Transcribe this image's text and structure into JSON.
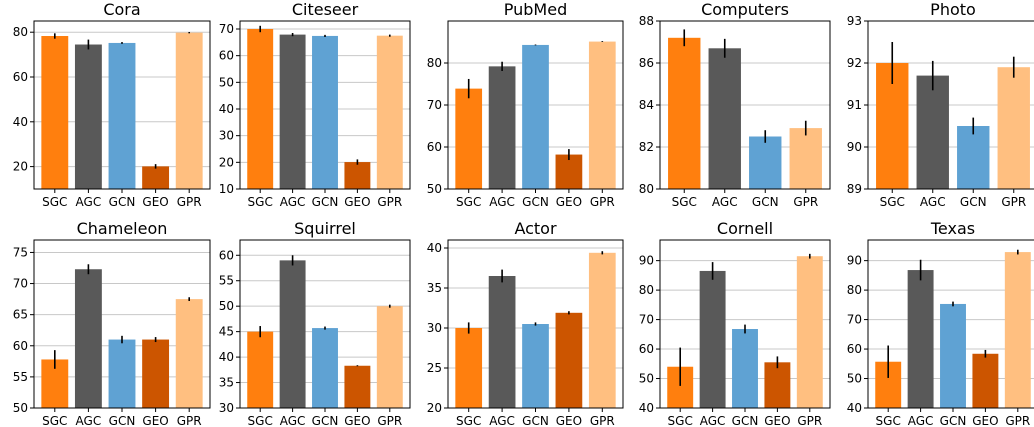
{
  "colors": {
    "SGC": "#ff7f0e",
    "AGC": "#595959",
    "GCN": "#5fa2d3",
    "GEO": "#cc5500",
    "GPR": "#ffbf80",
    "grid": "#c8c8c8",
    "errorbar": "#000000"
  },
  "chart_data": [
    {
      "type": "bar",
      "title": "Cora",
      "categories": [
        "SGC",
        "AGC",
        "GCN",
        "GEO",
        "GPR"
      ],
      "values": [
        78.3,
        74.5,
        75.2,
        20.1,
        79.8
      ],
      "errors": [
        1.2,
        2.2,
        0.4,
        1.0,
        0.3
      ],
      "ylim": [
        10,
        85
      ],
      "yticks": [
        20,
        40,
        60,
        80
      ],
      "grid": true
    },
    {
      "type": "bar",
      "title": "Citeseer",
      "categories": [
        "SGC",
        "AGC",
        "GCN",
        "GEO",
        "GPR"
      ],
      "values": [
        70.0,
        67.9,
        67.4,
        20.1,
        67.5
      ],
      "errors": [
        1.2,
        0.6,
        0.4,
        1.0,
        0.4
      ],
      "ylim": [
        10,
        73
      ],
      "yticks": [
        10,
        20,
        30,
        40,
        50,
        60,
        70
      ],
      "grid": true
    },
    {
      "type": "bar",
      "title": "PubMed",
      "categories": [
        "SGC",
        "AGC",
        "GCN",
        "GEO",
        "GPR"
      ],
      "values": [
        73.9,
        79.2,
        84.3,
        58.2,
        85.1
      ],
      "errors": [
        2.3,
        1.1,
        0.1,
        1.3,
        0.1
      ],
      "ylim": [
        50,
        90
      ],
      "yticks": [
        50,
        60,
        70,
        80
      ],
      "grid": true
    },
    {
      "type": "bar",
      "title": "Computers",
      "categories": [
        "SGC",
        "AGC",
        "GCN",
        "GPR"
      ],
      "values": [
        87.2,
        86.7,
        82.5,
        82.9
      ],
      "errors": [
        0.4,
        0.45,
        0.3,
        0.35
      ],
      "ylim": [
        80,
        88
      ],
      "yticks": [
        80,
        82,
        84,
        86,
        88
      ],
      "grid": true
    },
    {
      "type": "bar",
      "title": "Photo",
      "categories": [
        "SGC",
        "AGC",
        "GCN",
        "GPR"
      ],
      "values": [
        92.0,
        91.7,
        90.5,
        91.9
      ],
      "errors": [
        0.5,
        0.35,
        0.2,
        0.25
      ],
      "ylim": [
        89,
        93
      ],
      "yticks": [
        89,
        90,
        91,
        92,
        93
      ],
      "grid": true
    },
    {
      "type": "bar",
      "title": "Chameleon",
      "categories": [
        "SGC",
        "AGC",
        "GCN",
        "GEO",
        "GPR"
      ],
      "values": [
        57.8,
        72.3,
        61.0,
        61.0,
        67.5
      ],
      "errors": [
        1.5,
        0.8,
        0.6,
        0.4,
        0.3
      ],
      "ylim": [
        50,
        77
      ],
      "yticks": [
        50,
        55,
        60,
        65,
        70,
        75
      ],
      "grid": true
    },
    {
      "type": "bar",
      "title": "Squirrel",
      "categories": [
        "SGC",
        "AGC",
        "GCN",
        "GEO",
        "GPR"
      ],
      "values": [
        45.0,
        59.0,
        45.7,
        38.3,
        50.0
      ],
      "errors": [
        1.1,
        1.0,
        0.3,
        0.1,
        0.3
      ],
      "ylim": [
        30,
        63
      ],
      "yticks": [
        30,
        35,
        40,
        45,
        50,
        55,
        60
      ],
      "grid": true
    },
    {
      "type": "bar",
      "title": "Actor",
      "categories": [
        "SGC",
        "AGC",
        "GCN",
        "GEO",
        "GPR"
      ],
      "values": [
        30.0,
        36.5,
        30.5,
        31.9,
        39.4
      ],
      "errors": [
        0.7,
        0.8,
        0.2,
        0.2,
        0.2
      ],
      "ylim": [
        20,
        41
      ],
      "yticks": [
        20,
        25,
        30,
        35,
        40
      ],
      "grid": true
    },
    {
      "type": "bar",
      "title": "Cornell",
      "categories": [
        "SGC",
        "AGC",
        "GCN",
        "GEO",
        "GPR"
      ],
      "values": [
        54.0,
        86.5,
        66.8,
        55.5,
        91.5
      ],
      "errors": [
        6.5,
        3.0,
        1.5,
        2.0,
        0.8
      ],
      "ylim": [
        40,
        97
      ],
      "yticks": [
        40,
        50,
        60,
        70,
        80,
        90
      ],
      "grid": true
    },
    {
      "type": "bar",
      "title": "Texas",
      "categories": [
        "SGC",
        "AGC",
        "GCN",
        "GEO",
        "GPR"
      ],
      "values": [
        55.7,
        86.8,
        75.3,
        58.4,
        92.9
      ],
      "errors": [
        5.5,
        3.5,
        0.8,
        1.3,
        0.8
      ],
      "ylim": [
        40,
        97
      ],
      "yticks": [
        40,
        50,
        60,
        70,
        80,
        90
      ],
      "grid": true
    }
  ]
}
